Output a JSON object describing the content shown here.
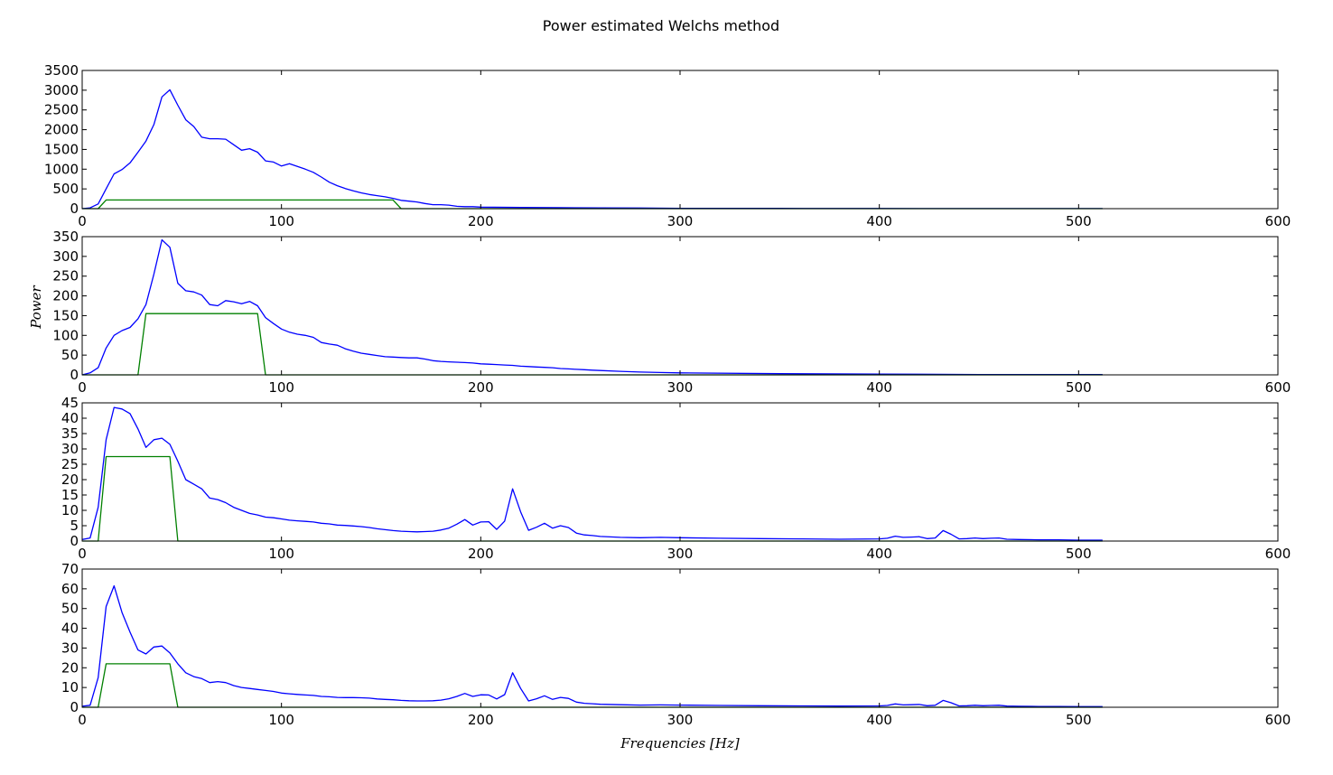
{
  "figure": {
    "title": "Power estimated Welchs method",
    "xlabel": "Frequencies [Hz]",
    "ylabel": "Power"
  },
  "colors": {
    "psd": "#0000ff",
    "filter": "#008000",
    "axes": "#000000",
    "background": "#ffffff"
  },
  "chart_data": [
    {
      "type": "line",
      "xlim": [
        0,
        600
      ],
      "ylim": [
        0,
        3500
      ],
      "xticks": [
        0,
        100,
        200,
        300,
        400,
        500,
        600
      ],
      "yticks": [
        0,
        500,
        1000,
        1500,
        2000,
        2500,
        3000,
        3500
      ],
      "grid": false,
      "series": [
        {
          "color": "#0000ff",
          "x": [
            0,
            4,
            8,
            12,
            16,
            20,
            24,
            28,
            32,
            36,
            40,
            44,
            48,
            52,
            56,
            60,
            64,
            68,
            72,
            76,
            80,
            84,
            88,
            92,
            96,
            100,
            104,
            108,
            112,
            116,
            120,
            124,
            128,
            132,
            136,
            140,
            144,
            148,
            152,
            156,
            160,
            164,
            168,
            172,
            176,
            180,
            184,
            188,
            192,
            196,
            200,
            220,
            240,
            260,
            280,
            300,
            350,
            400,
            450,
            512
          ],
          "y": [
            0,
            20,
            120,
            500,
            880,
            990,
            1160,
            1430,
            1710,
            2130,
            2830,
            3010,
            2620,
            2250,
            2080,
            1810,
            1770,
            1770,
            1760,
            1620,
            1480,
            1520,
            1430,
            1210,
            1180,
            1080,
            1140,
            1070,
            1000,
            920,
            800,
            670,
            580,
            510,
            450,
            400,
            360,
            330,
            300,
            260,
            210,
            190,
            170,
            130,
            100,
            100,
            90,
            60,
            50,
            50,
            40,
            30,
            25,
            20,
            15,
            10,
            8,
            5,
            3,
            2
          ]
        },
        {
          "color": "#008000",
          "x": [
            0,
            8,
            12,
            156,
            160,
            512
          ],
          "y": [
            0,
            0,
            220,
            220,
            0,
            0
          ]
        }
      ]
    },
    {
      "type": "line",
      "xlim": [
        0,
        600
      ],
      "ylim": [
        0,
        350
      ],
      "xticks": [
        0,
        100,
        200,
        300,
        400,
        500,
        600
      ],
      "yticks": [
        0,
        50,
        100,
        150,
        200,
        250,
        300,
        350
      ],
      "grid": false,
      "series": [
        {
          "color": "#0000ff",
          "x": [
            0,
            4,
            8,
            12,
            16,
            20,
            24,
            28,
            32,
            36,
            40,
            44,
            48,
            52,
            56,
            60,
            64,
            68,
            72,
            76,
            80,
            84,
            88,
            92,
            96,
            100,
            104,
            108,
            112,
            116,
            120,
            124,
            128,
            132,
            136,
            140,
            144,
            148,
            152,
            156,
            160,
            164,
            168,
            172,
            176,
            180,
            184,
            188,
            192,
            196,
            200,
            204,
            208,
            212,
            216,
            220,
            224,
            228,
            232,
            236,
            240,
            244,
            248,
            252,
            256,
            260,
            270,
            280,
            290,
            300,
            350,
            400,
            450,
            512
          ],
          "y": [
            0,
            5,
            18,
            68,
            100,
            112,
            120,
            142,
            178,
            255,
            342,
            323,
            232,
            213,
            210,
            202,
            178,
            175,
            188,
            185,
            180,
            186,
            175,
            145,
            130,
            116,
            108,
            103,
            100,
            95,
            82,
            78,
            75,
            66,
            60,
            55,
            52,
            49,
            46,
            45,
            44,
            43,
            43,
            40,
            36,
            34,
            33,
            32,
            31,
            30,
            28,
            27,
            26,
            25,
            24,
            22,
            21,
            20,
            19,
            18,
            16,
            15,
            14,
            13,
            12,
            11,
            9,
            7,
            6,
            5,
            3,
            2,
            1,
            1
          ]
        },
        {
          "color": "#008000",
          "x": [
            0,
            28,
            32,
            88,
            92,
            512
          ],
          "y": [
            0,
            0,
            155,
            155,
            0,
            0
          ]
        }
      ]
    },
    {
      "type": "line",
      "xlim": [
        0,
        600
      ],
      "ylim": [
        0,
        45
      ],
      "xticks": [
        0,
        100,
        200,
        300,
        400,
        500,
        600
      ],
      "yticks": [
        0,
        5,
        10,
        15,
        20,
        25,
        30,
        35,
        40,
        45
      ],
      "grid": false,
      "series": [
        {
          "color": "#0000ff",
          "x": [
            0,
            4,
            8,
            12,
            16,
            20,
            24,
            28,
            32,
            36,
            40,
            44,
            48,
            52,
            56,
            60,
            64,
            68,
            72,
            76,
            80,
            84,
            88,
            92,
            96,
            100,
            104,
            108,
            112,
            116,
            120,
            124,
            128,
            132,
            136,
            140,
            144,
            148,
            152,
            156,
            160,
            164,
            168,
            172,
            176,
            180,
            184,
            188,
            192,
            196,
            200,
            204,
            208,
            212,
            216,
            220,
            224,
            228,
            232,
            236,
            240,
            244,
            248,
            252,
            256,
            260,
            270,
            280,
            290,
            300,
            320,
            340,
            360,
            380,
            400,
            404,
            408,
            412,
            416,
            420,
            424,
            428,
            432,
            436,
            440,
            444,
            448,
            452,
            456,
            460,
            464,
            470,
            480,
            490,
            500,
            512
          ],
          "y": [
            0.5,
            1,
            11,
            33,
            43.5,
            43,
            41.5,
            36.5,
            30.5,
            33,
            33.5,
            31.5,
            26,
            20,
            18.5,
            17,
            14,
            13.5,
            12.5,
            11,
            10,
            9,
            8.5,
            7.8,
            7.6,
            7.2,
            6.8,
            6.6,
            6.4,
            6.2,
            5.8,
            5.6,
            5.2,
            5.1,
            4.9,
            4.7,
            4.4,
            4.0,
            3.7,
            3.4,
            3.2,
            3.1,
            3.0,
            3.1,
            3.2,
            3.6,
            4.2,
            5.5,
            7,
            5.2,
            6.2,
            6.3,
            3.8,
            6.5,
            17,
            9.5,
            3.5,
            4.5,
            5.8,
            4.2,
            5.0,
            4.4,
            2.6,
            2.0,
            1.8,
            1.5,
            1.2,
            1.1,
            1.2,
            1.1,
            0.9,
            0.8,
            0.7,
            0.6,
            0.7,
            0.9,
            1.6,
            1.2,
            1.3,
            1.4,
            0.8,
            1.0,
            3.4,
            2.2,
            0.7,
            0.8,
            1.0,
            0.8,
            0.9,
            1.0,
            0.6,
            0.5,
            0.4,
            0.4,
            0.3,
            0.3
          ]
        },
        {
          "color": "#008000",
          "x": [
            0,
            8,
            12,
            44,
            48,
            512
          ],
          "y": [
            0,
            0,
            27.5,
            27.5,
            0,
            0
          ]
        }
      ]
    },
    {
      "type": "line",
      "xlim": [
        0,
        600
      ],
      "ylim": [
        0,
        70
      ],
      "xticks": [
        0,
        100,
        200,
        300,
        400,
        500,
        600
      ],
      "yticks": [
        0,
        10,
        20,
        30,
        40,
        50,
        60,
        70
      ],
      "grid": false,
      "series": [
        {
          "color": "#0000ff",
          "x": [
            0,
            4,
            8,
            12,
            16,
            20,
            24,
            28,
            32,
            36,
            40,
            44,
            48,
            52,
            56,
            60,
            64,
            68,
            72,
            76,
            80,
            84,
            88,
            92,
            96,
            100,
            104,
            108,
            112,
            116,
            120,
            124,
            128,
            132,
            136,
            140,
            144,
            148,
            152,
            156,
            160,
            164,
            168,
            172,
            176,
            180,
            184,
            188,
            192,
            196,
            200,
            204,
            208,
            212,
            216,
            220,
            224,
            228,
            232,
            236,
            240,
            244,
            248,
            252,
            256,
            260,
            270,
            280,
            290,
            300,
            320,
            340,
            360,
            380,
            400,
            404,
            408,
            412,
            416,
            420,
            424,
            428,
            432,
            436,
            440,
            444,
            448,
            452,
            456,
            460,
            464,
            470,
            480,
            490,
            500,
            512
          ],
          "y": [
            0.5,
            1,
            15,
            51,
            61.5,
            48,
            38,
            29,
            27,
            30.5,
            31,
            27.5,
            22,
            17.5,
            15.5,
            14.5,
            12.5,
            13,
            12.5,
            11,
            10,
            9.5,
            9,
            8.5,
            8,
            7.2,
            6.8,
            6.5,
            6.2,
            6.0,
            5.5,
            5.3,
            5.0,
            4.9,
            4.9,
            4.8,
            4.6,
            4.2,
            4.0,
            3.8,
            3.5,
            3.3,
            3.2,
            3.2,
            3.3,
            3.6,
            4.3,
            5.5,
            7,
            5.5,
            6.3,
            6.2,
            4.2,
            6.4,
            17.5,
            9.5,
            3.2,
            4.3,
            5.8,
            4.0,
            5.0,
            4.5,
            2.6,
            2.0,
            1.8,
            1.5,
            1.3,
            1.1,
            1.2,
            1.1,
            0.9,
            0.8,
            0.7,
            0.6,
            0.7,
            0.9,
            1.7,
            1.2,
            1.3,
            1.4,
            0.8,
            1.0,
            3.5,
            2.3,
            0.7,
            0.8,
            1.0,
            0.8,
            0.9,
            1.0,
            0.6,
            0.5,
            0.4,
            0.4,
            0.3,
            0.3
          ]
        },
        {
          "color": "#008000",
          "x": [
            0,
            8,
            12,
            44,
            48,
            512
          ],
          "y": [
            0,
            0,
            22,
            22,
            0,
            0
          ]
        }
      ]
    }
  ]
}
